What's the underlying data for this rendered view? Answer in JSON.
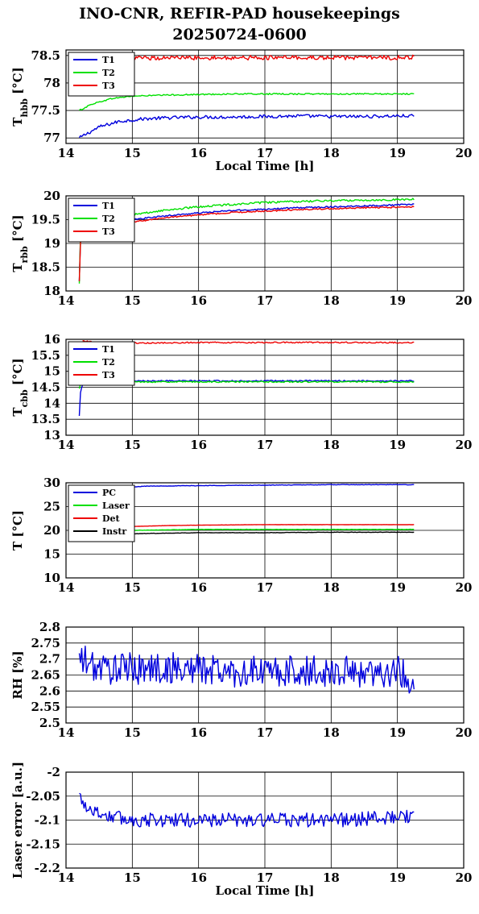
{
  "figure": {
    "title_line1": "INO-CNR, REFIR-PAD housekeepings",
    "title_line2": "20250724-0600"
  },
  "colors": {
    "blue": "#0000dd",
    "green": "#00e000",
    "red": "#ee0000",
    "black": "#000000",
    "grid": "#000000"
  },
  "chart_data": [
    {
      "type": "line",
      "ylabel": "T_hbb [°C]",
      "ylabel_main": "T",
      "ylabel_sub": "hbb",
      "ylabel_unit": " [°C]",
      "xlabel": "Local Time [h]",
      "xlim": [
        14,
        20
      ],
      "ylim": [
        76.9,
        78.6
      ],
      "xticks": [
        "14",
        "15",
        "16",
        "17",
        "18",
        "19",
        "20"
      ],
      "yticks": [
        [
          "77",
          77
        ],
        [
          "77.5",
          77.5
        ],
        [
          "78",
          78
        ],
        [
          "78.5",
          78.5
        ]
      ],
      "grid": true,
      "legend": "top-left",
      "series": [
        {
          "name": "T1",
          "color": "#0000dd",
          "x": [
            14.2,
            14.5,
            14.8,
            15.2,
            15.6,
            16.0,
            16.5,
            17.0,
            17.5,
            18.0,
            18.5,
            19.0,
            19.25
          ],
          "y": [
            77.0,
            77.2,
            77.3,
            77.35,
            77.37,
            77.38,
            77.38,
            77.39,
            77.4,
            77.39,
            77.39,
            77.4,
            77.4
          ],
          "noise": 0.03
        },
        {
          "name": "T2",
          "color": "#00e000",
          "x": [
            14.2,
            14.4,
            14.7,
            15.0,
            15.5,
            16.0,
            16.5,
            17.0,
            17.5,
            18.0,
            18.5,
            19.0,
            19.25
          ],
          "y": [
            77.5,
            77.62,
            77.72,
            77.76,
            77.78,
            77.79,
            77.8,
            77.8,
            77.8,
            77.8,
            77.8,
            77.8,
            77.8
          ],
          "noise": 0.012
        },
        {
          "name": "T3",
          "color": "#ee0000",
          "x": [
            14.75,
            15.0,
            15.5,
            16.0,
            16.5,
            17.0,
            17.5,
            18.0,
            18.5,
            19.0,
            19.25
          ],
          "y": [
            78.45,
            78.45,
            78.46,
            78.46,
            78.46,
            78.46,
            78.46,
            78.46,
            78.46,
            78.46,
            78.47
          ],
          "noise": 0.04
        }
      ]
    },
    {
      "type": "line",
      "ylabel": "T_rbb [°C]",
      "ylabel_main": "T",
      "ylabel_sub": "rbb",
      "ylabel_unit": " [°C]",
      "xlabel": "",
      "xlim": [
        14,
        20
      ],
      "ylim": [
        18,
        20
      ],
      "xticks": [
        "14",
        "15",
        "16",
        "17",
        "18",
        "19",
        "20"
      ],
      "yticks": [
        [
          "18",
          18
        ],
        [
          "18.5",
          18.5
        ],
        [
          "19",
          19
        ],
        [
          "19.5",
          19.5
        ],
        [
          "20",
          20
        ]
      ],
      "grid": true,
      "legend": "top-left",
      "series": [
        {
          "name": "T1",
          "color": "#0000dd",
          "x": [
            14.2,
            14.22,
            14.3,
            14.6,
            15.0,
            15.5,
            16.0,
            16.5,
            17.0,
            17.5,
            18.0,
            18.5,
            19.0,
            19.25
          ],
          "y": [
            18.2,
            19.2,
            19.3,
            19.4,
            19.5,
            19.58,
            19.64,
            19.69,
            19.72,
            19.75,
            19.77,
            19.79,
            19.81,
            19.82
          ],
          "noise": 0.015
        },
        {
          "name": "T2",
          "color": "#00e000",
          "x": [
            14.2,
            14.22,
            14.3,
            14.6,
            15.0,
            15.5,
            16.0,
            16.5,
            17.0,
            17.5,
            18.0,
            18.5,
            19.0,
            19.25
          ],
          "y": [
            18.15,
            19.3,
            19.4,
            19.5,
            19.6,
            19.7,
            19.77,
            19.82,
            19.86,
            19.88,
            19.9,
            19.91,
            19.92,
            19.93
          ],
          "noise": 0.02
        },
        {
          "name": "T3",
          "color": "#ee0000",
          "x": [
            14.2,
            14.22,
            14.3,
            14.6,
            15.0,
            15.5,
            16.0,
            16.5,
            17.0,
            17.5,
            18.0,
            18.5,
            19.0,
            19.25
          ],
          "y": [
            18.2,
            19.1,
            19.2,
            19.32,
            19.45,
            19.54,
            19.6,
            19.65,
            19.68,
            19.71,
            19.73,
            19.75,
            19.76,
            19.77
          ],
          "noise": 0.015
        }
      ]
    },
    {
      "type": "line",
      "ylabel": "T_cbb [°C]",
      "ylabel_main": "T",
      "ylabel_sub": "cbb",
      "ylabel_unit": " [°C]",
      "xlabel": "",
      "xlim": [
        14,
        20
      ],
      "ylim": [
        13,
        16
      ],
      "xticks": [
        "14",
        "15",
        "16",
        "17",
        "18",
        "19",
        "20"
      ],
      "yticks": [
        [
          "13",
          13
        ],
        [
          "13.5",
          13.5
        ],
        [
          "14",
          14
        ],
        [
          "14.5",
          14.5
        ],
        [
          "15",
          15
        ],
        [
          "15.5",
          15.5
        ],
        [
          "16",
          16
        ]
      ],
      "grid": true,
      "legend": "top-left",
      "series": [
        {
          "name": "T1",
          "color": "#0000dd",
          "x": [
            14.2,
            14.22,
            14.25,
            14.3,
            15.0,
            16.0,
            17.0,
            18.0,
            19.0,
            19.25
          ],
          "y": [
            13.6,
            14.4,
            14.6,
            14.7,
            14.7,
            14.7,
            14.7,
            14.7,
            14.7,
            14.7
          ],
          "noise": 0.02
        },
        {
          "name": "T2",
          "color": "#00e000",
          "x": [
            14.2,
            14.22,
            14.3,
            15.0,
            16.0,
            17.0,
            18.0,
            19.0,
            19.25
          ],
          "y": [
            14.45,
            14.6,
            14.67,
            14.67,
            14.67,
            14.67,
            14.67,
            14.67,
            14.67
          ],
          "noise": 0.02
        },
        {
          "name": "T3",
          "color": "#ee0000",
          "x": [
            14.25,
            14.5,
            15.0,
            16.0,
            17.0,
            18.0,
            19.0,
            19.25
          ],
          "y": [
            15.95,
            15.9,
            15.88,
            15.9,
            15.9,
            15.9,
            15.9,
            15.9
          ],
          "noise": 0.02
        }
      ]
    },
    {
      "type": "line",
      "ylabel": "T [°C]",
      "ylabel_main": "T [°C]",
      "ylabel_sub": "",
      "ylabel_unit": "",
      "xlabel": "",
      "xlim": [
        14,
        20
      ],
      "ylim": [
        10,
        30
      ],
      "xticks": [
        "14",
        "15",
        "16",
        "17",
        "18",
        "19",
        "20"
      ],
      "yticks": [
        [
          "10",
          10
        ],
        [
          "15",
          15
        ],
        [
          "20",
          20
        ],
        [
          "25",
          25
        ],
        [
          "30",
          30
        ]
      ],
      "grid": true,
      "legend": "top-left",
      "series": [
        {
          "name": "PC",
          "color": "#0000dd",
          "x": [
            14.8,
            15.2,
            16.0,
            17.0,
            18.0,
            19.0,
            19.25
          ],
          "y": [
            28.9,
            29.3,
            29.4,
            29.5,
            29.6,
            29.6,
            29.6
          ],
          "noise": 0.05
        },
        {
          "name": "Laser",
          "color": "#00e000",
          "x": [
            15.0,
            15.5,
            16.0,
            17.0,
            18.0,
            19.0,
            19.25
          ],
          "y": [
            20.0,
            20.1,
            20.2,
            20.2,
            20.2,
            20.2,
            20.2
          ],
          "noise": 0.03
        },
        {
          "name": "Det",
          "color": "#ee0000",
          "x": [
            15.0,
            15.5,
            16.0,
            17.0,
            18.0,
            19.0,
            19.25
          ],
          "y": [
            20.8,
            21.0,
            21.1,
            21.2,
            21.2,
            21.2,
            21.2
          ],
          "noise": 0.02
        },
        {
          "name": "Instr",
          "color": "#000000",
          "x": [
            15.0,
            15.5,
            16.0,
            17.0,
            18.0,
            19.0,
            19.25
          ],
          "y": [
            19.3,
            19.4,
            19.5,
            19.5,
            19.6,
            19.6,
            19.6
          ],
          "noise": 0.04
        }
      ]
    },
    {
      "type": "line",
      "ylabel": "RH [%]",
      "ylabel_main": "RH [%]",
      "ylabel_sub": "",
      "ylabel_unit": "",
      "xlabel": "",
      "xlim": [
        14,
        20
      ],
      "ylim": [
        2.5,
        2.8
      ],
      "xticks": [
        "14",
        "15",
        "16",
        "17",
        "18",
        "19",
        "20"
      ],
      "yticks": [
        [
          "2.5",
          2.5
        ],
        [
          "2.55",
          2.55
        ],
        [
          "2.6",
          2.6
        ],
        [
          "2.65",
          2.65
        ],
        [
          "2.7",
          2.7
        ],
        [
          "2.75",
          2.75
        ],
        [
          "2.8",
          2.8
        ]
      ],
      "grid": true,
      "legend": "none",
      "series": [
        {
          "name": "",
          "color": "#0000dd",
          "x": [
            14.2,
            14.3,
            14.5,
            15.0,
            15.5,
            16.0,
            16.5,
            17.0,
            17.5,
            18.0,
            18.5,
            19.0,
            19.25
          ],
          "y": [
            2.7,
            2.69,
            2.67,
            2.67,
            2.67,
            2.67,
            2.66,
            2.66,
            2.66,
            2.66,
            2.66,
            2.66,
            2.63
          ],
          "noise": 0.05
        }
      ]
    },
    {
      "type": "line",
      "ylabel": "Laser error [a.u.]",
      "ylabel_main": "Laser error [a.u.]",
      "ylabel_sub": "",
      "ylabel_unit": "",
      "xlabel": "Local Time [h]",
      "xlim": [
        14,
        20
      ],
      "ylim": [
        -2.2,
        -2.0
      ],
      "xticks": [
        "14",
        "15",
        "16",
        "17",
        "18",
        "19",
        "20"
      ],
      "yticks": [
        [
          "-2.2",
          -2.2
        ],
        [
          "-2.15",
          -2.15
        ],
        [
          "-2.1",
          -2.1
        ],
        [
          "-2.05",
          -2.05
        ],
        [
          "-2",
          -2.0
        ]
      ],
      "grid": true,
      "legend": "none",
      "series": [
        {
          "name": "",
          "color": "#0000dd",
          "x": [
            14.2,
            14.3,
            14.4,
            14.6,
            15.0,
            16.0,
            17.0,
            18.0,
            19.0,
            19.25
          ],
          "y": [
            -2.05,
            -2.07,
            -2.08,
            -2.09,
            -2.1,
            -2.1,
            -2.1,
            -2.1,
            -2.095,
            -2.09
          ],
          "noise": 0.015
        }
      ]
    }
  ]
}
